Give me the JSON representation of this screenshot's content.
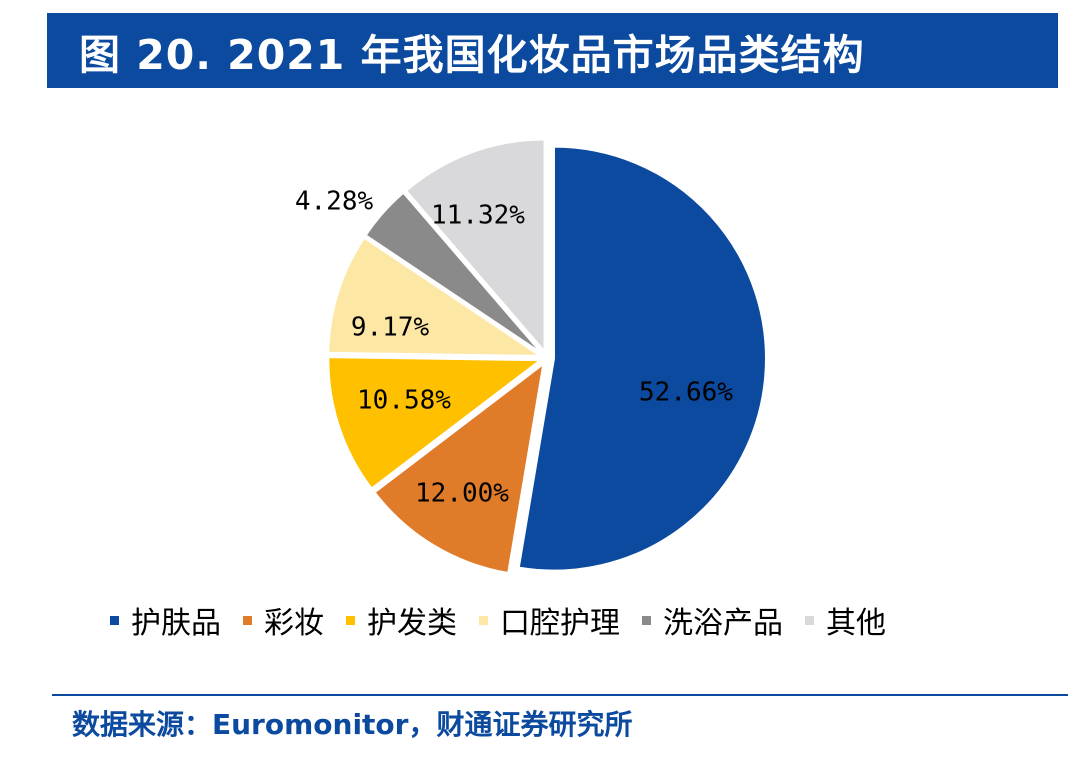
{
  "header": {
    "title": "图 20. 2021 年我国化妆品市场品类结构"
  },
  "chart_data": {
    "type": "pie",
    "title": "图 20. 2021 年我国化妆品市场品类结构",
    "categories": [
      "护肤品",
      "彩妆",
      "护发类",
      "口腔护理",
      "洗浴产品",
      "其他"
    ],
    "values": [
      52.66,
      12.0,
      10.58,
      9.17,
      4.28,
      11.32
    ],
    "value_labels": [
      "52.66%",
      "12.00%",
      "10.58%",
      "9.17%",
      "4.28%",
      "11.32%"
    ],
    "colors": [
      "#0B4A9E",
      "#E07B2A",
      "#FFC000",
      "#FDE7A5",
      "#8A8A8A",
      "#D9D9DC"
    ],
    "legend": "bottom",
    "start": "12-o'clock, clockwise",
    "grid": false
  },
  "footer": {
    "source": "数据来源：Euromonitor，财通证券研究所"
  }
}
